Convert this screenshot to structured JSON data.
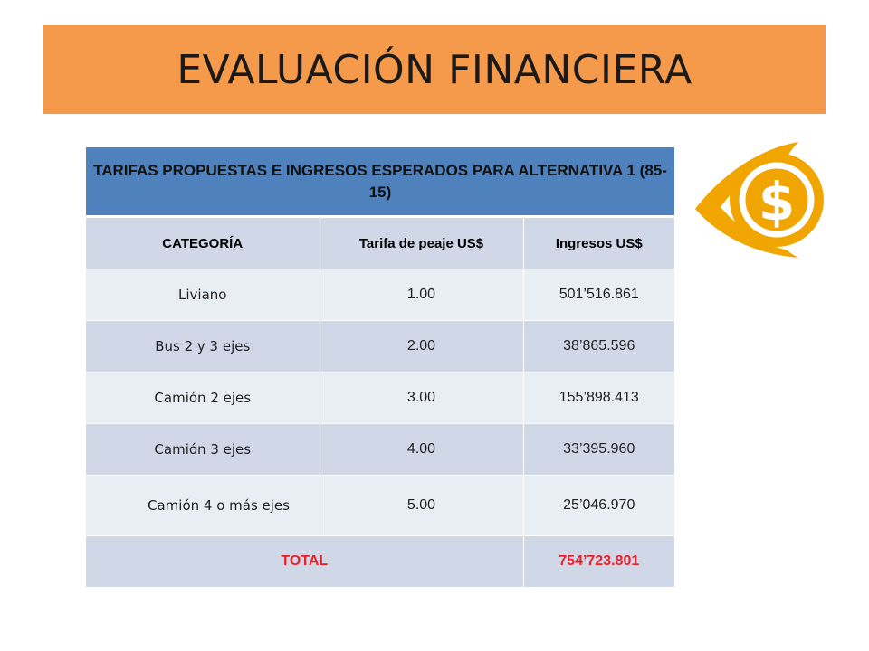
{
  "slide": {
    "title": "EVALUACIÓN FINANCIERA"
  },
  "table": {
    "caption": "TARIFAS PROPUESTAS E INGRESOS ESPERADOS PARA ALTERNATIVA 1 (85-15)",
    "columns": [
      "CATEGORÍA",
      "Tarifa de peaje US$",
      "Ingresos US$"
    ],
    "rows": [
      {
        "category": "Liviano",
        "rate": "1.00",
        "revenue": "501’516.861"
      },
      {
        "category": "Bus 2 y 3 ejes",
        "rate": "2.00",
        "revenue": "38’865.596"
      },
      {
        "category": "Camión 2 ejes",
        "rate": "3.00",
        "revenue": "155’898.413"
      },
      {
        "category": "Camión 3 ejes",
        "rate": "4.00",
        "revenue": "33’395.960"
      },
      {
        "category": "Camión 4 o más ejes",
        "rate": "5.00",
        "revenue": "25’046.970"
      }
    ],
    "total": {
      "label": "TOTAL",
      "value": "754’723.801"
    }
  },
  "icons": {
    "money": "dollar-eye-icon"
  },
  "colors": {
    "title_band": "#f59a4b",
    "table_header": "#4f81bd",
    "row_dark": "#d0d8e8",
    "row_light": "#e9edf4",
    "total_text": "#e8202a",
    "icon": "#f0a500"
  }
}
